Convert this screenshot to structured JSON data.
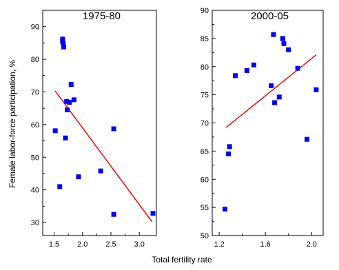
{
  "chart_data": [
    {
      "type": "scatter",
      "title": "1975-80",
      "xlabel": "",
      "ylabel": "Female labor-force participation, %",
      "xlim": [
        1.3,
        3.3
      ],
      "ylim": [
        26,
        95
      ],
      "x_ticks": [
        1.5,
        2.0,
        2.5,
        3.0
      ],
      "x_tick_labels": [
        "1.5",
        "2.0",
        "2.5",
        "3.0"
      ],
      "y_ticks": [
        30,
        40,
        50,
        60,
        70,
        80,
        90
      ],
      "y_tick_labels": [
        "30",
        "40",
        "50",
        "60",
        "70",
        "80",
        "90"
      ],
      "point_color": "#0000ff",
      "line_color": "#ff0000",
      "points": [
        {
          "x": 1.52,
          "y": 58.1
        },
        {
          "x": 1.6,
          "y": 41.0
        },
        {
          "x": 1.65,
          "y": 86.2
        },
        {
          "x": 1.65,
          "y": 85.5
        },
        {
          "x": 1.66,
          "y": 84.8
        },
        {
          "x": 1.67,
          "y": 83.8
        },
        {
          "x": 1.7,
          "y": 55.9
        },
        {
          "x": 1.72,
          "y": 67.1
        },
        {
          "x": 1.73,
          "y": 64.5
        },
        {
          "x": 1.77,
          "y": 66.8
        },
        {
          "x": 1.8,
          "y": 72.3
        },
        {
          "x": 1.85,
          "y": 67.6
        },
        {
          "x": 1.93,
          "y": 44.0
        },
        {
          "x": 2.32,
          "y": 45.8
        },
        {
          "x": 2.55,
          "y": 58.7
        },
        {
          "x": 2.55,
          "y": 32.5
        },
        {
          "x": 3.24,
          "y": 32.8
        }
      ],
      "fit_line": [
        {
          "x": 1.52,
          "y": 70.3
        },
        {
          "x": 3.22,
          "y": 30.3
        }
      ]
    },
    {
      "type": "scatter",
      "title": "2000-05",
      "xlabel": "",
      "ylabel": "",
      "xlim": [
        1.14,
        2.1
      ],
      "ylim": [
        50,
        90
      ],
      "x_ticks": [
        1.2,
        1.6,
        2.0
      ],
      "x_tick_labels": [
        "1.2",
        "1.6",
        "2.0"
      ],
      "y_ticks": [
        50,
        55,
        60,
        65,
        70,
        75,
        80,
        85,
        90
      ],
      "y_tick_labels": [
        "50",
        "55",
        "60",
        "65",
        "70",
        "75",
        "80",
        "85",
        "90"
      ],
      "point_color": "#0000ff",
      "line_color": "#ff0000",
      "points": [
        {
          "x": 1.25,
          "y": 54.7
        },
        {
          "x": 1.28,
          "y": 64.5
        },
        {
          "x": 1.29,
          "y": 65.8
        },
        {
          "x": 1.34,
          "y": 78.4
        },
        {
          "x": 1.44,
          "y": 79.3
        },
        {
          "x": 1.5,
          "y": 80.3
        },
        {
          "x": 1.65,
          "y": 76.6
        },
        {
          "x": 1.67,
          "y": 85.7
        },
        {
          "x": 1.68,
          "y": 73.6
        },
        {
          "x": 1.72,
          "y": 74.6
        },
        {
          "x": 1.75,
          "y": 85.0
        },
        {
          "x": 1.76,
          "y": 84.1
        },
        {
          "x": 1.8,
          "y": 83.0
        },
        {
          "x": 1.88,
          "y": 79.7
        },
        {
          "x": 1.96,
          "y": 67.1
        },
        {
          "x": 2.04,
          "y": 75.9
        }
      ],
      "fit_line": [
        {
          "x": 1.26,
          "y": 69.2
        },
        {
          "x": 2.04,
          "y": 82.1
        }
      ]
    }
  ],
  "shared_xlabel": "Total fertility rate"
}
